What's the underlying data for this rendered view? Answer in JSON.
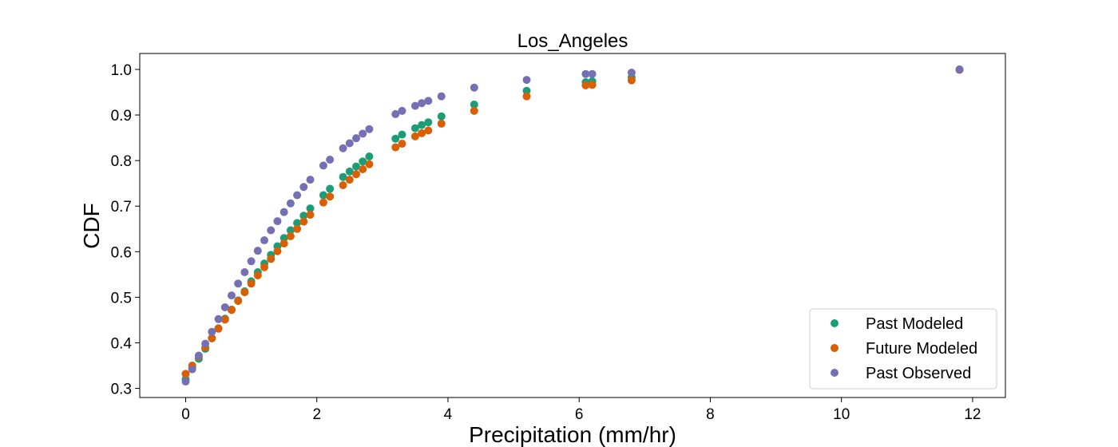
{
  "chart_data": {
    "type": "scatter",
    "title": "Los_Angeles",
    "xlabel": "Precipitation (mm/hr)",
    "ylabel": "CDF",
    "xlim": [
      -0.7,
      12.5
    ],
    "ylim": [
      0.28,
      1.035
    ],
    "xticks": [
      "0",
      "2",
      "4",
      "6",
      "8",
      "10",
      "12"
    ],
    "yticks": [
      "0.3",
      "0.4",
      "0.5",
      "0.6",
      "0.7",
      "0.8",
      "0.9",
      "1.0"
    ],
    "grid": false,
    "legend_position": "lower-right",
    "series": [
      {
        "name": "Past Modeled",
        "color": "#1b9e77",
        "x": [
          0,
          0.1,
          0.2,
          0.3,
          0.4,
          0.5,
          0.6,
          0.7,
          0.8,
          0.9,
          1.0,
          1.1,
          1.2,
          1.3,
          1.4,
          1.5,
          1.6,
          1.7,
          1.8,
          1.9,
          2.1,
          2.2,
          2.4,
          2.5,
          2.6,
          2.7,
          2.8,
          3.2,
          3.3,
          3.5,
          3.6,
          3.7,
          3.9,
          4.4,
          5.2,
          6.1,
          6.2,
          6.8,
          11.8
        ],
        "y": [
          0.32,
          0.345,
          0.365,
          0.387,
          0.41,
          0.432,
          0.453,
          0.473,
          0.493,
          0.513,
          0.535,
          0.555,
          0.574,
          0.593,
          0.612,
          0.63,
          0.647,
          0.663,
          0.679,
          0.695,
          0.724,
          0.738,
          0.764,
          0.776,
          0.787,
          0.798,
          0.809,
          0.848,
          0.857,
          0.871,
          0.878,
          0.884,
          0.897,
          0.923,
          0.953,
          0.972,
          0.974,
          0.982,
          1.0
        ]
      },
      {
        "name": "Future Modeled",
        "color": "#d95f02",
        "x": [
          0,
          0.1,
          0.2,
          0.3,
          0.4,
          0.5,
          0.6,
          0.7,
          0.8,
          0.9,
          1.0,
          1.1,
          1.2,
          1.3,
          1.4,
          1.5,
          1.6,
          1.7,
          1.8,
          1.9,
          2.1,
          2.2,
          2.4,
          2.5,
          2.6,
          2.7,
          2.8,
          3.2,
          3.3,
          3.5,
          3.6,
          3.7,
          3.9,
          4.4,
          5.2,
          6.1,
          6.2,
          6.8,
          11.8
        ],
        "y": [
          0.332,
          0.35,
          0.37,
          0.39,
          0.41,
          0.431,
          0.451,
          0.472,
          0.492,
          0.511,
          0.53,
          0.548,
          0.566,
          0.584,
          0.601,
          0.618,
          0.634,
          0.65,
          0.666,
          0.681,
          0.708,
          0.721,
          0.746,
          0.758,
          0.77,
          0.781,
          0.792,
          0.829,
          0.837,
          0.853,
          0.86,
          0.866,
          0.881,
          0.909,
          0.941,
          0.965,
          0.966,
          0.976,
          0.999
        ]
      },
      {
        "name": "Past Observed",
        "color": "#7570b3",
        "x": [
          0,
          0.1,
          0.2,
          0.3,
          0.4,
          0.5,
          0.6,
          0.7,
          0.8,
          0.9,
          1.0,
          1.1,
          1.2,
          1.3,
          1.4,
          1.5,
          1.6,
          1.7,
          1.8,
          1.9,
          2.1,
          2.2,
          2.4,
          2.5,
          2.6,
          2.7,
          2.8,
          3.2,
          3.3,
          3.5,
          3.6,
          3.7,
          3.9,
          4.4,
          5.2,
          6.1,
          6.2,
          6.8,
          11.8
        ],
        "y": [
          0.315,
          0.342,
          0.372,
          0.398,
          0.424,
          0.452,
          0.478,
          0.504,
          0.53,
          0.555,
          0.579,
          0.602,
          0.625,
          0.647,
          0.667,
          0.687,
          0.706,
          0.724,
          0.742,
          0.758,
          0.789,
          0.802,
          0.827,
          0.838,
          0.849,
          0.859,
          0.869,
          0.902,
          0.909,
          0.92,
          0.926,
          0.931,
          0.941,
          0.96,
          0.977,
          0.99,
          0.99,
          0.993,
          1.0
        ]
      }
    ]
  }
}
